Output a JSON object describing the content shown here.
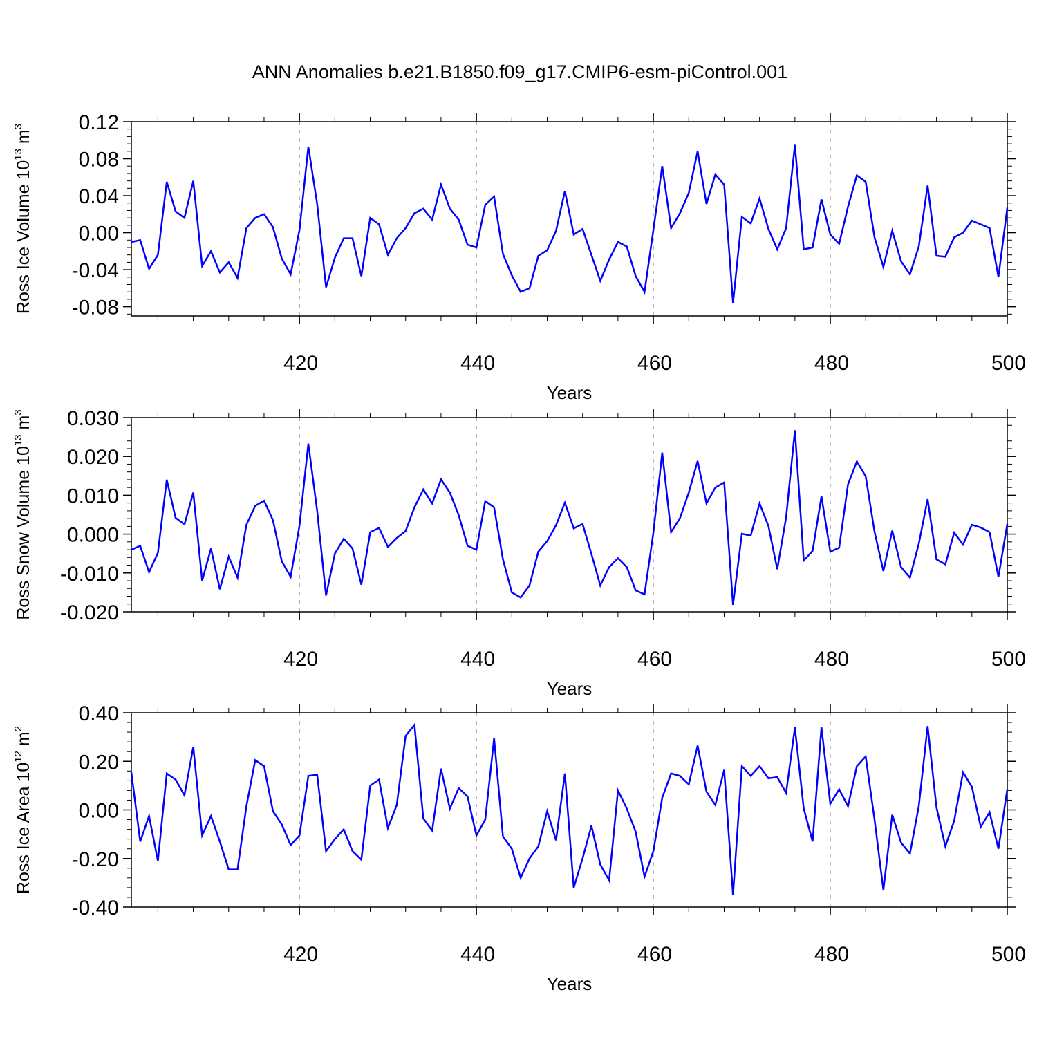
{
  "title": "ANN Anomalies b.e21.B1850.f09_g17.CMIP6-esm-piControl.001",
  "colors": {
    "line": "#0000ff",
    "axis": "#000000",
    "grid": "#9a9a9a"
  },
  "chart_data": [
    {
      "type": "line",
      "ylabel_main": "Ross Ice Volume 10",
      "ylabel_exp": "13",
      "ylabel_unit": " m",
      "ylabel_unit_exp": "3",
      "xlabel": "Years",
      "xlim": [
        401,
        500
      ],
      "ylim": [
        -0.09,
        0.12
      ],
      "xticks": [
        420,
        440,
        460,
        480,
        500
      ],
      "xtick_labels": [
        "420",
        "440",
        "460",
        "480",
        "500"
      ],
      "yticks": [
        0.12,
        0.08,
        0.04,
        0.0,
        -0.04,
        -0.08
      ],
      "ytick_labels": [
        "0.12",
        "0.08",
        "0.04",
        "0.00",
        "-0.04",
        "-0.08"
      ],
      "series": [
        {
          "name": "Ross Ice Volume",
          "x_start": 401,
          "values": [
            -0.01,
            -0.008,
            -0.039,
            -0.024,
            0.055,
            0.023,
            0.016,
            0.056,
            -0.036,
            -0.02,
            -0.043,
            -0.032,
            -0.049,
            0.005,
            0.016,
            0.02,
            0.006,
            -0.028,
            -0.045,
            0.003,
            0.093,
            0.031,
            -0.059,
            -0.027,
            -0.006,
            -0.006,
            -0.047,
            0.016,
            0.009,
            -0.024,
            -0.006,
            0.005,
            0.021,
            0.026,
            0.014,
            0.052,
            0.026,
            0.014,
            -0.013,
            -0.016,
            0.03,
            0.039,
            -0.023,
            -0.046,
            -0.064,
            -0.06,
            -0.025,
            -0.019,
            0.002,
            0.045,
            -0.002,
            0.004,
            -0.024,
            -0.052,
            -0.029,
            -0.01,
            -0.015,
            -0.047,
            -0.064,
            0.003,
            0.072,
            0.005,
            0.021,
            0.043,
            0.088,
            0.031,
            0.063,
            0.052,
            -0.076,
            0.017,
            0.01,
            0.037,
            0.004,
            -0.018,
            0.005,
            0.095,
            -0.018,
            -0.016,
            0.036,
            -0.002,
            -0.012,
            0.028,
            0.062,
            0.055,
            -0.005,
            -0.037,
            0.002,
            -0.031,
            -0.045,
            -0.015,
            0.051,
            -0.025,
            -0.026,
            -0.005,
            0.0,
            0.013,
            0.009,
            0.005,
            -0.048,
            0.027
          ]
        }
      ]
    },
    {
      "type": "line",
      "ylabel_main": "Ross Snow Volume 10",
      "ylabel_exp": "13",
      "ylabel_unit": " m",
      "ylabel_unit_exp": "3",
      "xlabel": "Years",
      "xlim": [
        401,
        500
      ],
      "ylim": [
        -0.02,
        0.03
      ],
      "xticks": [
        420,
        440,
        460,
        480,
        500
      ],
      "xtick_labels": [
        "420",
        "440",
        "460",
        "480",
        "500"
      ],
      "yticks": [
        0.03,
        0.02,
        0.01,
        0.0,
        -0.01,
        -0.02
      ],
      "ytick_labels": [
        "0.030",
        "0.020",
        "0.010",
        "0.000",
        "-0.010",
        "-0.020"
      ],
      "series": [
        {
          "name": "Ross Snow Volume",
          "x_start": 401,
          "values": [
            -0.004,
            -0.003,
            -0.0098,
            -0.0048,
            0.014,
            0.0042,
            0.0025,
            0.0107,
            -0.012,
            -0.0037,
            -0.0142,
            -0.0058,
            -0.0112,
            0.0024,
            0.0073,
            0.0086,
            0.0036,
            -0.007,
            -0.011,
            0.0022,
            0.0233,
            0.006,
            -0.0158,
            -0.005,
            -0.0012,
            -0.0037,
            -0.013,
            0.0005,
            0.0016,
            -0.0033,
            -0.001,
            0.0008,
            0.0069,
            0.0115,
            0.0079,
            0.0141,
            0.0107,
            0.0049,
            -0.003,
            -0.004,
            0.0085,
            0.0069,
            -0.0065,
            -0.015,
            -0.0163,
            -0.0132,
            -0.0045,
            -0.0018,
            0.0023,
            0.0081,
            0.0015,
            0.0026,
            -0.0051,
            -0.0132,
            -0.0085,
            -0.0062,
            -0.0085,
            -0.0145,
            -0.0155,
            0.0004,
            0.021,
            0.0005,
            0.0041,
            0.0107,
            0.0188,
            0.0079,
            0.012,
            0.0133,
            -0.0182,
            0.0001,
            -0.0004,
            0.0079,
            0.0021,
            -0.009,
            0.0043,
            0.0267,
            -0.0068,
            -0.0043,
            0.0097,
            -0.0045,
            -0.0035,
            0.0128,
            0.0187,
            0.0149,
            0.0006,
            -0.0095,
            0.0009,
            -0.0085,
            -0.0112,
            -0.0025,
            0.009,
            -0.0065,
            -0.0078,
            0.0004,
            -0.0027,
            0.0024,
            0.0017,
            0.0005,
            -0.011,
            0.0026
          ]
        }
      ]
    },
    {
      "type": "line",
      "ylabel_main": "Ross Ice Area 10",
      "ylabel_exp": "12",
      "ylabel_unit": " m",
      "ylabel_unit_exp": "2",
      "xlabel": "Years",
      "xlim": [
        401,
        500
      ],
      "ylim": [
        -0.4,
        0.4
      ],
      "xticks": [
        420,
        440,
        460,
        480,
        500
      ],
      "xtick_labels": [
        "420",
        "440",
        "460",
        "480",
        "500"
      ],
      "yticks": [
        0.4,
        0.2,
        0.0,
        -0.2,
        -0.4
      ],
      "ytick_labels": [
        "0.40",
        "0.20",
        "0.00",
        "-0.20",
        "-0.40"
      ],
      "series": [
        {
          "name": "Ross Ice Area",
          "x_start": 401,
          "values": [
            0.155,
            -0.13,
            -0.025,
            -0.21,
            0.15,
            0.125,
            0.06,
            0.26,
            -0.105,
            -0.025,
            -0.13,
            -0.245,
            -0.245,
            0.015,
            0.205,
            0.18,
            -0.005,
            -0.06,
            -0.145,
            -0.105,
            0.14,
            0.145,
            -0.17,
            -0.12,
            -0.08,
            -0.17,
            -0.205,
            0.1,
            0.125,
            -0.075,
            0.02,
            0.305,
            0.35,
            -0.035,
            -0.085,
            0.17,
            0.005,
            0.09,
            0.055,
            -0.105,
            -0.04,
            0.295,
            -0.11,
            -0.16,
            -0.28,
            -0.2,
            -0.15,
            -0.005,
            -0.125,
            0.15,
            -0.32,
            -0.2,
            -0.065,
            -0.225,
            -0.29,
            0.08,
            0.005,
            -0.09,
            -0.275,
            -0.17,
            0.05,
            0.15,
            0.14,
            0.105,
            0.265,
            0.075,
            0.02,
            0.165,
            -0.35,
            0.18,
            0.14,
            0.18,
            0.13,
            0.135,
            0.07,
            0.34,
            0.005,
            -0.13,
            0.34,
            0.025,
            0.085,
            0.015,
            0.18,
            0.22,
            -0.04,
            -0.33,
            -0.02,
            -0.135,
            -0.18,
            0.015,
            0.345,
            0.01,
            -0.15,
            -0.045,
            0.155,
            0.095,
            -0.07,
            -0.01,
            -0.16,
            0.085
          ]
        }
      ]
    }
  ]
}
